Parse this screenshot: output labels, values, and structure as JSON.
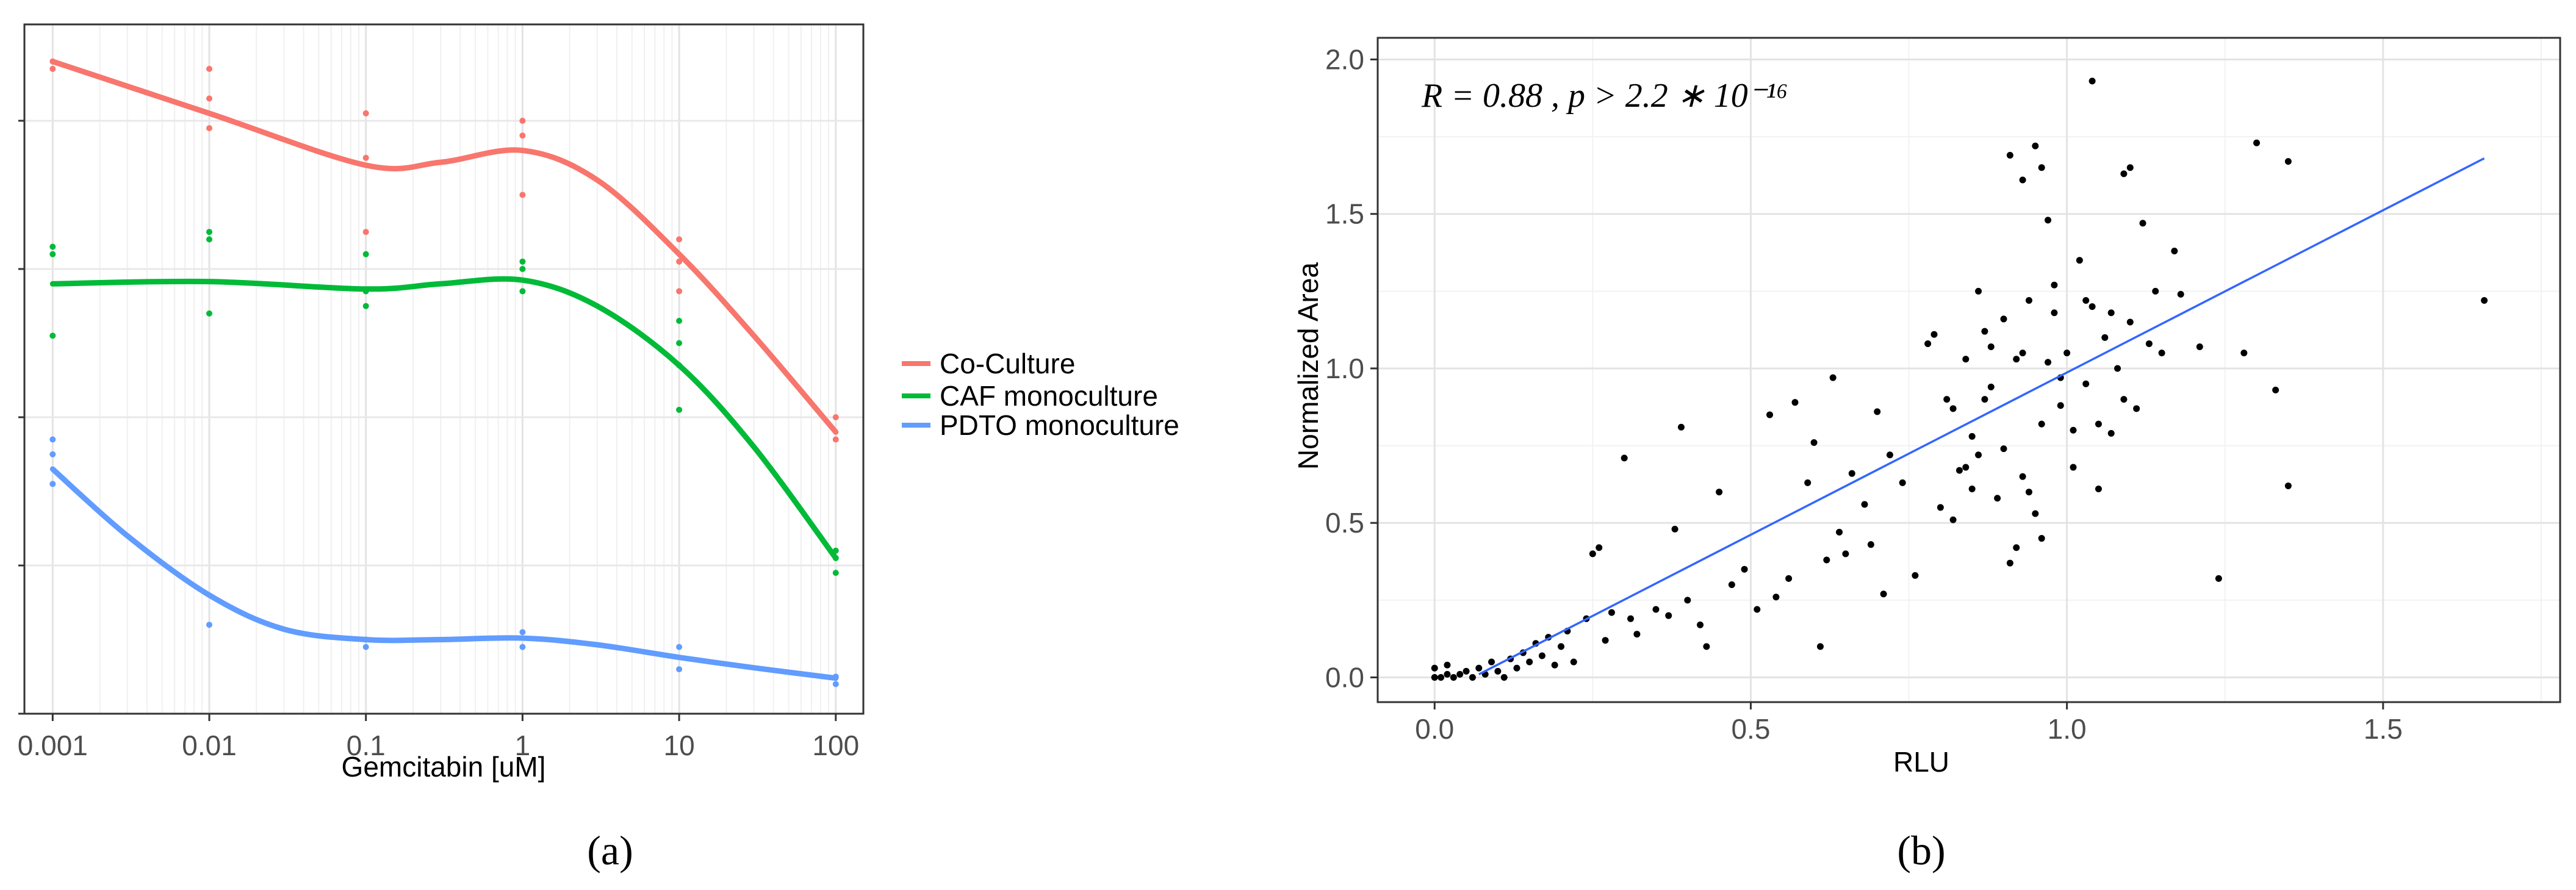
{
  "chart_data": [
    {
      "type": "scatter",
      "panel_label": "a",
      "xlabel": "Gemcitabin [uM]",
      "ylabel": "",
      "x_scale": "log10",
      "x_ticks": [
        0.001,
        0.01,
        0.1,
        1,
        10,
        100
      ],
      "x_tick_labels": [
        "0.001",
        "0.01",
        "0.1",
        "1",
        "10",
        "100"
      ],
      "xlim": [
        0.00066,
        150
      ],
      "ylim": [
        0.0,
        0.93
      ],
      "y_ticks": [
        0.0,
        0.2,
        0.4,
        0.6,
        0.8
      ],
      "grid": true,
      "legend_position": "right",
      "series": [
        {
          "name": "Co-Culture",
          "color": "#F8766D",
          "x": [
            0.001,
            0.001,
            0.01,
            0.01,
            0.01,
            0.1,
            0.1,
            0.1,
            1,
            1,
            1,
            10,
            10,
            10,
            100,
            100
          ],
          "values": [
            0.88,
            0.87,
            0.87,
            0.83,
            0.79,
            0.81,
            0.75,
            0.65,
            0.8,
            0.78,
            0.7,
            0.64,
            0.61,
            0.57,
            0.4,
            0.37
          ],
          "curve_x": [
            0.001,
            0.01,
            0.1,
            0.3,
            1,
            3,
            10,
            30,
            100
          ],
          "curve_y": [
            0.88,
            0.81,
            0.74,
            0.744,
            0.76,
            0.72,
            0.62,
            0.51,
            0.38
          ]
        },
        {
          "name": "CAF monoculture",
          "color": "#00BA38",
          "x": [
            0.001,
            0.001,
            0.001,
            0.01,
            0.01,
            0.01,
            0.1,
            0.1,
            0.1,
            1,
            1,
            1,
            10,
            10,
            10,
            10,
            100,
            100,
            100
          ],
          "values": [
            0.63,
            0.62,
            0.51,
            0.65,
            0.64,
            0.54,
            0.62,
            0.57,
            0.55,
            0.61,
            0.6,
            0.57,
            0.53,
            0.5,
            0.47,
            0.41,
            0.22,
            0.21,
            0.19
          ],
          "curve_x": [
            0.001,
            0.01,
            0.1,
            0.3,
            1,
            3,
            10,
            30,
            100
          ],
          "curve_y": [
            0.58,
            0.583,
            0.573,
            0.58,
            0.585,
            0.55,
            0.47,
            0.36,
            0.21
          ]
        },
        {
          "name": "PDTO monoculture",
          "color": "#619CFF",
          "x": [
            0.001,
            0.001,
            0.001,
            0.01,
            0.1,
            0.1,
            1,
            1,
            10,
            10,
            100,
            100
          ],
          "values": [
            0.37,
            0.35,
            0.31,
            0.12,
            0.1,
            0.09,
            0.11,
            0.09,
            0.09,
            0.06,
            0.05,
            0.04
          ],
          "curve_x": [
            0.001,
            0.003,
            0.01,
            0.03,
            0.1,
            0.3,
            1,
            3,
            10,
            30,
            100
          ],
          "curve_y": [
            0.33,
            0.24,
            0.16,
            0.114,
            0.1,
            0.1,
            0.102,
            0.093,
            0.076,
            0.062,
            0.048
          ]
        }
      ]
    },
    {
      "type": "scatter",
      "panel_label": "b",
      "xlabel": "RLU",
      "ylabel": "Normalized Area",
      "xlim": [
        -0.09,
        1.78
      ],
      "ylim": [
        -0.08,
        2.07
      ],
      "x_ticks": [
        0.0,
        0.5,
        1.0,
        1.5
      ],
      "x_tick_labels": [
        "0.0",
        "0.5",
        "1.0",
        "1.5"
      ],
      "y_ticks": [
        0.0,
        0.5,
        1.0,
        1.5,
        2.0
      ],
      "y_tick_labels": [
        "0.0",
        "0.5",
        "1.0",
        "1.5",
        "2.0"
      ],
      "grid": true,
      "annotation": "R = 0.88 , p > 2.2 ∗ 10⁻¹⁶",
      "point_color": "#000000",
      "line_color": "#3366FF",
      "regression": {
        "x": [
          0.07,
          1.66
        ],
        "y": [
          0.01,
          1.68
        ]
      },
      "points": [
        [
          0.0,
          0.0
        ],
        [
          0.01,
          0.0
        ],
        [
          0.02,
          0.01
        ],
        [
          0.03,
          0.0
        ],
        [
          0.0,
          0.03
        ],
        [
          0.02,
          0.04
        ],
        [
          0.04,
          0.01
        ],
        [
          0.05,
          0.02
        ],
        [
          0.06,
          0.0
        ],
        [
          0.07,
          0.03
        ],
        [
          0.08,
          0.01
        ],
        [
          0.09,
          0.05
        ],
        [
          0.1,
          0.02
        ],
        [
          0.11,
          0.0
        ],
        [
          0.12,
          0.06
        ],
        [
          0.13,
          0.03
        ],
        [
          0.14,
          0.08
        ],
        [
          0.15,
          0.05
        ],
        [
          0.16,
          0.11
        ],
        [
          0.17,
          0.07
        ],
        [
          0.18,
          0.13
        ],
        [
          0.19,
          0.04
        ],
        [
          0.2,
          0.1
        ],
        [
          0.21,
          0.15
        ],
        [
          0.22,
          0.05
        ],
        [
          0.24,
          0.19
        ],
        [
          0.25,
          0.4
        ],
        [
          0.26,
          0.42
        ],
        [
          0.27,
          0.12
        ],
        [
          0.28,
          0.21
        ],
        [
          0.3,
          0.71
        ],
        [
          0.31,
          0.19
        ],
        [
          0.32,
          0.14
        ],
        [
          0.35,
          0.22
        ],
        [
          0.37,
          0.2
        ],
        [
          0.38,
          0.48
        ],
        [
          0.39,
          0.81
        ],
        [
          0.4,
          0.25
        ],
        [
          0.42,
          0.17
        ],
        [
          0.43,
          0.1
        ],
        [
          0.45,
          0.6
        ],
        [
          0.47,
          0.3
        ],
        [
          0.49,
          0.35
        ],
        [
          0.51,
          0.22
        ],
        [
          0.53,
          0.85
        ],
        [
          0.54,
          0.26
        ],
        [
          0.56,
          0.32
        ],
        [
          0.57,
          0.89
        ],
        [
          0.59,
          0.63
        ],
        [
          0.6,
          0.76
        ],
        [
          0.61,
          0.1
        ],
        [
          0.62,
          0.38
        ],
        [
          0.63,
          0.97
        ],
        [
          0.64,
          0.47
        ],
        [
          0.65,
          0.4
        ],
        [
          0.66,
          0.66
        ],
        [
          0.68,
          0.56
        ],
        [
          0.69,
          0.43
        ],
        [
          0.7,
          0.86
        ],
        [
          0.71,
          0.27
        ],
        [
          0.72,
          0.72
        ],
        [
          0.74,
          0.63
        ],
        [
          0.76,
          0.33
        ],
        [
          0.78,
          1.08
        ],
        [
          0.79,
          1.11
        ],
        [
          0.8,
          0.55
        ],
        [
          0.81,
          0.9
        ],
        [
          0.82,
          0.51
        ],
        [
          0.83,
          0.67
        ],
        [
          0.84,
          1.03
        ],
        [
          0.85,
          0.78
        ],
        [
          0.86,
          0.72
        ],
        [
          0.87,
          1.12
        ],
        [
          0.88,
          0.94
        ],
        [
          0.89,
          0.58
        ],
        [
          0.9,
          1.16
        ],
        [
          0.91,
          0.37
        ],
        [
          0.92,
          1.03
        ],
        [
          0.93,
          0.65
        ],
        [
          0.94,
          1.22
        ],
        [
          0.95,
          0.53
        ],
        [
          0.96,
          0.82
        ],
        [
          0.97,
          1.48
        ],
        [
          0.98,
          1.27
        ],
        [
          0.99,
          0.88
        ],
        [
          1.0,
          1.05
        ],
        [
          1.01,
          0.68
        ],
        [
          1.02,
          1.35
        ],
        [
          1.03,
          0.95
        ],
        [
          1.04,
          1.2
        ],
        [
          1.05,
          0.61
        ],
        [
          1.06,
          1.1
        ],
        [
          1.07,
          0.79
        ],
        [
          1.08,
          1.0
        ],
        [
          1.09,
          1.63
        ],
        [
          1.1,
          1.15
        ],
        [
          1.11,
          0.87
        ],
        [
          1.12,
          1.47
        ],
        [
          1.13,
          1.08
        ],
        [
          1.14,
          1.25
        ],
        [
          1.15,
          1.05
        ],
        [
          1.17,
          1.38
        ],
        [
          1.18,
          1.24
        ],
        [
          1.21,
          1.07
        ],
        [
          1.24,
          0.32
        ],
        [
          1.28,
          1.05
        ],
        [
          1.3,
          1.73
        ],
        [
          1.33,
          0.93
        ],
        [
          1.35,
          1.67
        ],
        [
          1.35,
          0.62
        ],
        [
          0.91,
          1.69
        ],
        [
          0.93,
          1.61
        ],
        [
          0.95,
          1.72
        ],
        [
          0.96,
          1.65
        ],
        [
          1.04,
          1.93
        ],
        [
          1.1,
          1.65
        ],
        [
          0.86,
          1.25
        ],
        [
          0.92,
          0.42
        ],
        [
          0.96,
          0.45
        ],
        [
          0.98,
          1.18
        ],
        [
          0.82,
          0.87
        ],
        [
          0.84,
          0.68
        ],
        [
          0.9,
          0.74
        ],
        [
          0.93,
          1.05
        ],
        [
          0.99,
          0.97
        ],
        [
          1.01,
          0.8
        ],
        [
          1.03,
          1.22
        ],
        [
          1.05,
          0.82
        ],
        [
          1.07,
          1.18
        ],
        [
          1.09,
          0.9
        ],
        [
          0.88,
          1.07
        ],
        [
          0.94,
          0.6
        ],
        [
          0.97,
          1.02
        ],
        [
          0.85,
          0.61
        ],
        [
          0.87,
          0.9
        ],
        [
          1.66,
          1.22
        ]
      ]
    }
  ],
  "legend": {
    "entries": [
      {
        "label": "Co-Culture",
        "color": "#F8766D"
      },
      {
        "label": "CAF monoculture",
        "color": "#00BA38"
      },
      {
        "label": "PDTO monoculture",
        "color": "#619CFF"
      }
    ]
  },
  "captions": {
    "a": "(a)",
    "b": "(b)"
  }
}
